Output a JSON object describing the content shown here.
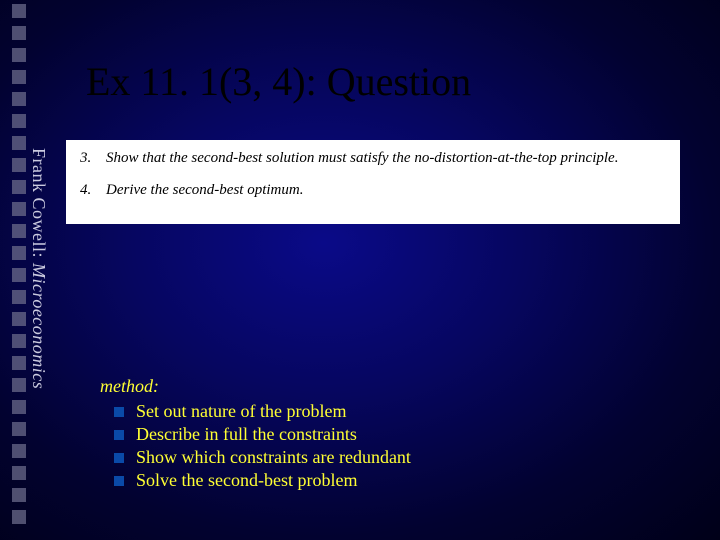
{
  "title": "Ex 11. 1(3, 4): Question",
  "vertical_label_plain": "Frank Cowell: ",
  "vertical_label_italic": "Microeconomics",
  "question_items": [
    {
      "num": "3.",
      "text": "Show that the second-best solution must satisfy the no-distortion-at-the-top principle."
    },
    {
      "num": "4.",
      "text": "Derive the second-best optimum."
    }
  ],
  "method": {
    "heading": "method:",
    "items": [
      "Set out nature of the problem",
      "Describe in full the constraints",
      "Show which constraints are redundant",
      "Solve the second-best problem"
    ]
  },
  "style": {
    "slide_width": 720,
    "slide_height": 540,
    "background_gradient": [
      "#0a0a88",
      "#060660",
      "#020230",
      "#000018"
    ],
    "title_color": "#000000",
    "title_fontsize": 40,
    "question_bg": "#ffffff",
    "question_text_color": "#000000",
    "question_fontsize": 15,
    "method_text_color": "#ffff33",
    "method_fontsize": 18,
    "bullet_color": "#0a4aa8",
    "left_square_color": "#6a6a8a",
    "left_square_size": 14,
    "vertical_label_color": "#cacadf",
    "vertical_label_fontsize": 18
  }
}
